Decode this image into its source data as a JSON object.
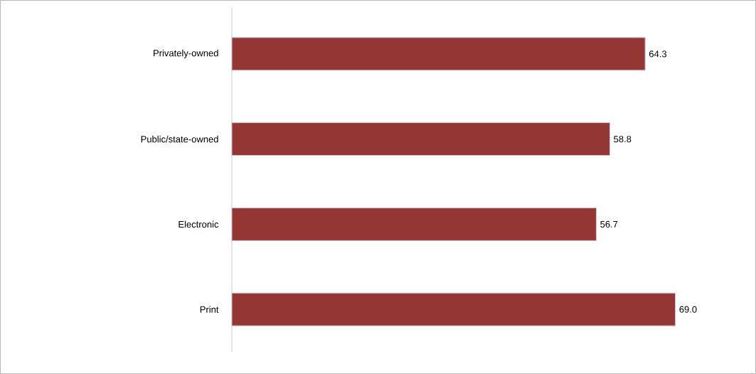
{
  "chart_data": {
    "type": "bar",
    "orientation": "horizontal",
    "categories": [
      "Privately-owned",
      "Public/state-owned",
      "Electronic",
      "Print"
    ],
    "values": [
      64.3,
      58.8,
      56.7,
      69.0
    ],
    "value_labels": [
      "64.3",
      "58.8",
      "56.7",
      "69.0"
    ],
    "color": "#943634"
  }
}
